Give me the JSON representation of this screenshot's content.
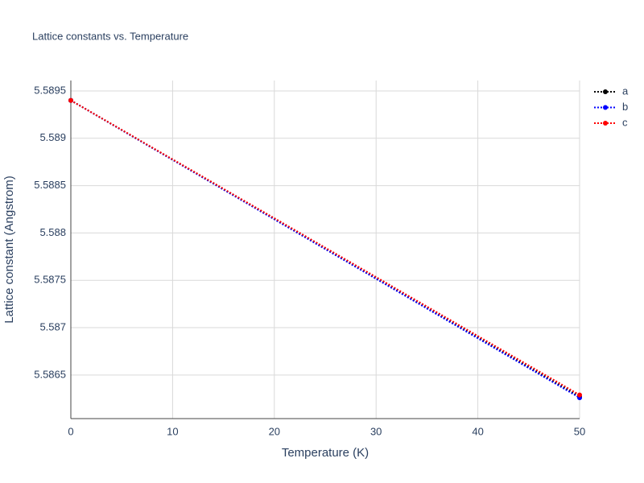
{
  "chart_data": {
    "type": "line",
    "title": "Lattice constants vs. Temperature",
    "x_label": "Temperature (K)",
    "y_label": "Lattice constant (Angstrom)",
    "x": [
      0,
      50
    ],
    "series": [
      {
        "name": "a",
        "color": "#000000",
        "values": [
          5.5894,
          5.58627
        ]
      },
      {
        "name": "b",
        "color": "#0000ff",
        "values": [
          5.5894,
          5.58626
        ]
      },
      {
        "name": "c",
        "color": "#ff0000",
        "values": [
          5.5894,
          5.58629
        ]
      }
    ],
    "xlim": [
      0,
      50
    ],
    "xticks": [
      0,
      10,
      20,
      30,
      40,
      50
    ],
    "ylim": [
      5.58604,
      5.58961
    ],
    "yticks": [
      5.5865,
      5.587,
      5.5875,
      5.588,
      5.5885,
      5.589,
      5.5895
    ],
    "grid": true,
    "legend": "top-right"
  }
}
